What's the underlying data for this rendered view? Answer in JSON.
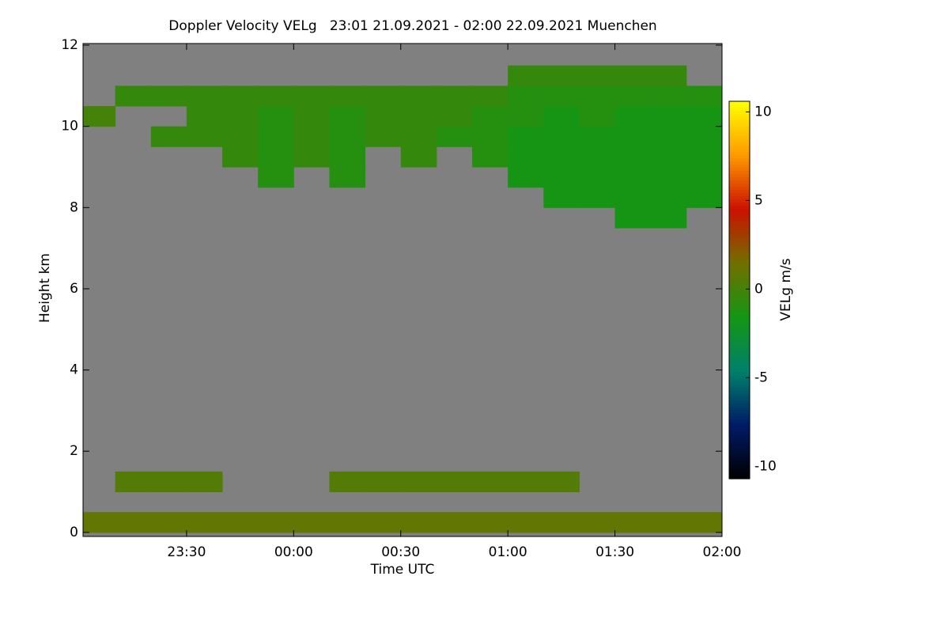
{
  "chart_data": {
    "type": "heatmap",
    "title": "Doppler Velocity VELg   23:01 21.09.2021 - 02:00 22.09.2021 Muenchen",
    "xlabel": "Time UTC",
    "ylabel": "Height km",
    "colorbar_label": "VELg m/s",
    "background": "#808080",
    "xlim": [
      -59,
      120
    ],
    "ylim": [
      -0.1,
      12.04
    ],
    "xticks": [
      {
        "value": -30,
        "label": "23:30"
      },
      {
        "value": 0,
        "label": "00:00"
      },
      {
        "value": 30,
        "label": "00:30"
      },
      {
        "value": 60,
        "label": "01:00"
      },
      {
        "value": 90,
        "label": "01:30"
      },
      {
        "value": 120,
        "label": "02:00"
      }
    ],
    "yticks": [
      0,
      2,
      4,
      6,
      8,
      10,
      12
    ],
    "zlim": [
      -10.7,
      10.6
    ],
    "zticks": [
      -10,
      -5,
      0,
      5,
      10
    ],
    "colormap": [
      "#000000",
      "#001a66",
      "#00806a",
      "#149614",
      "#707000",
      "#cc1000",
      "#ff9900",
      "#ffff00"
    ],
    "x": [
      -55,
      -45,
      -35,
      -25,
      -15,
      -5,
      5,
      15,
      25,
      35,
      45,
      55,
      65,
      75,
      85,
      95,
      105,
      115
    ],
    "y": [
      0.25,
      0.75,
      1.25,
      1.75,
      2.25,
      2.75,
      3.25,
      3.75,
      4.25,
      4.75,
      5.25,
      5.75,
      6.25,
      6.75,
      7.25,
      7.75,
      8.25,
      8.75,
      9.25,
      9.75,
      10.25,
      10.75,
      11.25,
      11.75
    ],
    "z": [
      [
        1,
        1,
        1,
        1,
        1,
        1,
        1,
        1,
        1,
        1,
        1,
        1,
        1,
        1,
        1,
        1,
        1,
        1
      ],
      [
        null,
        null,
        null,
        null,
        null,
        null,
        null,
        null,
        null,
        null,
        null,
        null,
        null,
        null,
        null,
        null,
        null,
        null
      ],
      [
        null,
        0.5,
        0.5,
        0.5,
        null,
        null,
        null,
        0.5,
        0.5,
        0.5,
        0.5,
        0.5,
        0.5,
        0.5,
        null,
        null,
        null,
        null
      ],
      [
        null,
        null,
        null,
        null,
        null,
        null,
        null,
        null,
        null,
        null,
        null,
        null,
        null,
        null,
        null,
        null,
        null,
        null
      ],
      [
        null,
        null,
        null,
        null,
        null,
        null,
        null,
        null,
        null,
        null,
        null,
        null,
        null,
        null,
        null,
        null,
        null,
        null
      ],
      [
        null,
        null,
        null,
        null,
        null,
        null,
        null,
        null,
        null,
        null,
        null,
        null,
        null,
        null,
        null,
        null,
        null,
        null
      ],
      [
        null,
        null,
        null,
        null,
        null,
        null,
        null,
        null,
        null,
        null,
        null,
        null,
        null,
        null,
        null,
        null,
        null,
        null
      ],
      [
        null,
        null,
        null,
        null,
        null,
        null,
        null,
        null,
        null,
        null,
        null,
        null,
        null,
        null,
        null,
        null,
        null,
        null
      ],
      [
        null,
        null,
        null,
        null,
        null,
        null,
        null,
        null,
        null,
        null,
        null,
        null,
        null,
        null,
        null,
        null,
        null,
        null
      ],
      [
        null,
        null,
        null,
        null,
        null,
        null,
        null,
        null,
        null,
        null,
        null,
        null,
        null,
        null,
        null,
        null,
        null,
        null
      ],
      [
        null,
        null,
        null,
        null,
        null,
        null,
        null,
        null,
        null,
        null,
        null,
        null,
        null,
        null,
        null,
        null,
        null,
        null
      ],
      [
        null,
        null,
        null,
        null,
        null,
        null,
        null,
        null,
        null,
        null,
        null,
        null,
        null,
        null,
        null,
        null,
        null,
        null
      ],
      [
        null,
        null,
        null,
        null,
        null,
        null,
        null,
        null,
        null,
        null,
        null,
        null,
        null,
        null,
        null,
        null,
        null,
        null
      ],
      [
        null,
        null,
        null,
        null,
        null,
        null,
        null,
        null,
        null,
        null,
        null,
        null,
        null,
        null,
        null,
        null,
        null,
        null
      ],
      [
        null,
        null,
        null,
        null,
        null,
        null,
        null,
        null,
        null,
        null,
        null,
        null,
        null,
        null,
        null,
        null,
        null,
        null
      ],
      [
        null,
        null,
        null,
        null,
        null,
        null,
        null,
        null,
        null,
        null,
        null,
        null,
        null,
        null,
        null,
        -1.5,
        -1.5,
        null
      ],
      [
        null,
        null,
        null,
        null,
        null,
        null,
        null,
        null,
        null,
        null,
        null,
        null,
        null,
        -1.5,
        -1.5,
        -1.5,
        -1.5,
        -1.5
      ],
      [
        null,
        null,
        null,
        null,
        null,
        -1,
        null,
        -1,
        null,
        null,
        null,
        null,
        -1.5,
        -1.5,
        -1.5,
        -1.5,
        -1.5,
        -1.5
      ],
      [
        null,
        null,
        null,
        null,
        -0.5,
        -1,
        -0.5,
        -1,
        null,
        -0.5,
        null,
        -1,
        -1.5,
        -1.5,
        -1.5,
        -1.5,
        -1.5,
        -1.5
      ],
      [
        null,
        null,
        -0.5,
        -0.5,
        -0.5,
        -1,
        -0.5,
        -1,
        -0.5,
        -0.5,
        -1,
        -1,
        -1.5,
        -1.5,
        -1.5,
        -1.5,
        -1.5,
        -1.5
      ],
      [
        0,
        null,
        null,
        -0.5,
        -0.5,
        -1,
        -0.5,
        -1,
        -0.5,
        -0.5,
        -0.5,
        -1,
        -1,
        -1.5,
        -1,
        -1.5,
        -1.5,
        -1.5
      ],
      [
        null,
        -0.5,
        -0.5,
        -0.5,
        -0.5,
        -0.5,
        -0.5,
        -0.5,
        -0.5,
        -0.5,
        -0.5,
        -0.5,
        -1,
        -1,
        -1,
        -1,
        -1,
        -1
      ],
      [
        null,
        null,
        null,
        null,
        null,
        null,
        null,
        null,
        null,
        null,
        null,
        null,
        -0.5,
        -0.5,
        -0.5,
        -0.5,
        -0.5,
        null
      ],
      [
        null,
        null,
        null,
        null,
        null,
        null,
        null,
        null,
        null,
        null,
        null,
        null,
        null,
        null,
        null,
        null,
        null,
        null
      ]
    ]
  }
}
